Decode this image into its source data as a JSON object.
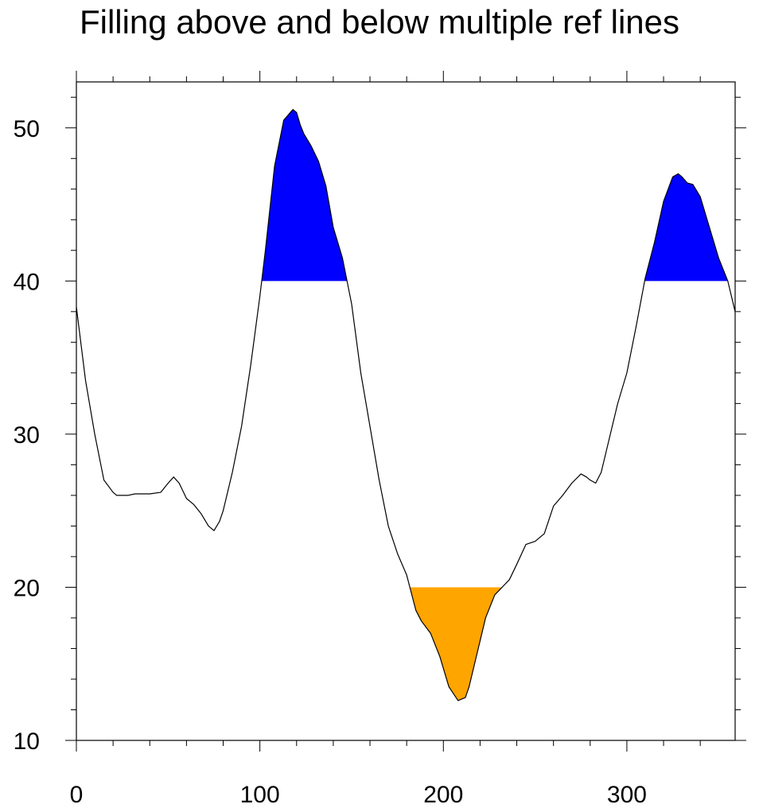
{
  "chart_data": {
    "type": "line",
    "title": "Filling above and below multiple ref lines",
    "xlabel": "",
    "ylabel": "",
    "xlim": [
      0,
      359
    ],
    "ylim": [
      10,
      53
    ],
    "xticks": [
      0,
      100,
      200,
      300
    ],
    "yticks": [
      10,
      20,
      30,
      40,
      50
    ],
    "grid": false,
    "ref_lines": [
      {
        "value": 40,
        "fill": "above",
        "color": "#0000ff"
      },
      {
        "value": 20,
        "fill": "below",
        "color": "#ffa500"
      }
    ],
    "series": [
      {
        "line_color": "#000000",
        "x": [
          0,
          5,
          10,
          15,
          20,
          22,
          25,
          28,
          32,
          40,
          46,
          50,
          53,
          56,
          60,
          64,
          68,
          72,
          75,
          78,
          80,
          85,
          90,
          95,
          100,
          103,
          108,
          113,
          118,
          120,
          122,
          124,
          128,
          132,
          136,
          140,
          145,
          150,
          155,
          160,
          165,
          170,
          175,
          180,
          185,
          188,
          193,
          198,
          203,
          208,
          212,
          214,
          218,
          223,
          228,
          232,
          236,
          240,
          245,
          250,
          255,
          260,
          265,
          270,
          275,
          278,
          280,
          283,
          286,
          290,
          295,
          300,
          305,
          310,
          315,
          320,
          325,
          328,
          330,
          333,
          336,
          340,
          345,
          350,
          355,
          359
        ],
        "y": [
          38.3,
          33.5,
          30,
          27,
          26.2,
          26,
          26,
          26,
          26.1,
          26.1,
          26.2,
          26.8,
          27.2,
          26.8,
          25.8,
          25.4,
          24.8,
          24,
          23.7,
          24.3,
          25,
          27.5,
          30.5,
          34.5,
          39,
          42,
          47.5,
          50.5,
          51.2,
          51,
          50.2,
          49.6,
          48.8,
          47.8,
          46.2,
          43.5,
          41.5,
          38.5,
          34,
          30.5,
          27,
          24,
          22.2,
          20.8,
          18.5,
          17.8,
          17,
          15.5,
          13.5,
          12.6,
          12.8,
          13.5,
          15.5,
          18,
          19.5,
          20,
          20.5,
          21.5,
          22.8,
          23,
          23.5,
          25.3,
          26,
          26.8,
          27.4,
          27.2,
          27,
          26.8,
          27.5,
          29.5,
          32,
          34,
          37,
          40.2,
          42.5,
          45.2,
          46.8,
          47,
          46.8,
          46.4,
          46.3,
          45.5,
          43.5,
          41.5,
          40,
          38
        ]
      }
    ]
  }
}
